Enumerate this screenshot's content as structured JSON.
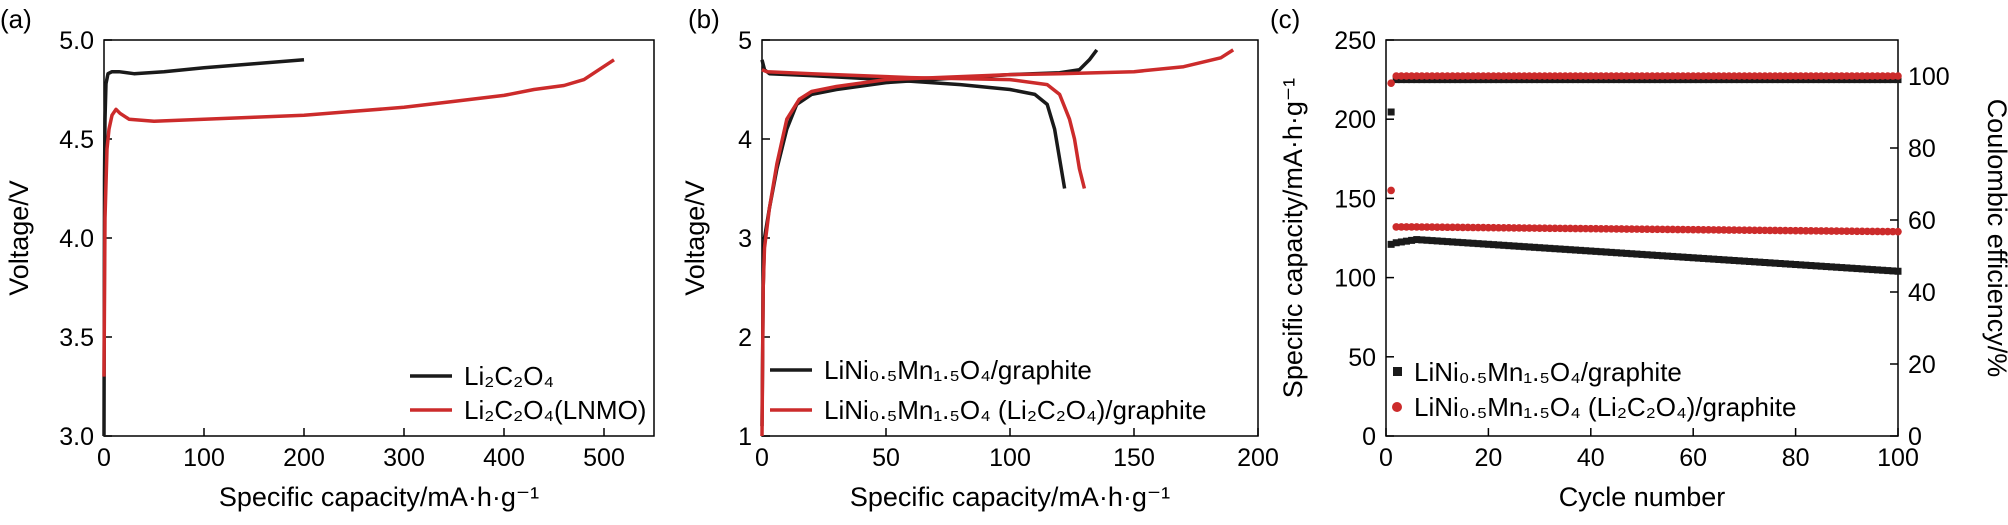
{
  "colors": {
    "black_series": "#1a1a1a",
    "red_series": "#cc2b2b"
  },
  "chart_data": [
    {
      "type": "line",
      "panel_label": "(a)",
      "xlabel": "Specific capacity/mA·h·g⁻¹",
      "ylabel": "Voltage/V",
      "xlim": [
        0,
        550
      ],
      "ylim": [
        3.0,
        5.0
      ],
      "xticks": [
        "0",
        "100",
        "200",
        "300",
        "400",
        "500"
      ],
      "yticks": [
        "3.0",
        "3.5",
        "4.0",
        "4.5",
        "5.0"
      ],
      "legend_position": "bottom-right",
      "series": [
        {
          "name": "Li₂C₂O₄",
          "color": "#1a1a1a",
          "points": [
            [
              0,
              3.0
            ],
            [
              0.5,
              4.3
            ],
            [
              1,
              4.6
            ],
            [
              2,
              4.78
            ],
            [
              4,
              4.83
            ],
            [
              8,
              4.84
            ],
            [
              15,
              4.84
            ],
            [
              30,
              4.83
            ],
            [
              60,
              4.84
            ],
            [
              100,
              4.86
            ],
            [
              150,
              4.88
            ],
            [
              200,
              4.9
            ]
          ]
        },
        {
          "name": "Li₂C₂O₄(LNMO)",
          "color": "#cc2b2b",
          "points": [
            [
              0,
              3.3
            ],
            [
              1,
              4.1
            ],
            [
              3,
              4.45
            ],
            [
              5,
              4.55
            ],
            [
              8,
              4.62
            ],
            [
              12,
              4.65
            ],
            [
              16,
              4.63
            ],
            [
              25,
              4.6
            ],
            [
              50,
              4.59
            ],
            [
              100,
              4.6
            ],
            [
              150,
              4.61
            ],
            [
              200,
              4.62
            ],
            [
              250,
              4.64
            ],
            [
              300,
              4.66
            ],
            [
              350,
              4.69
            ],
            [
              400,
              4.72
            ],
            [
              430,
              4.75
            ],
            [
              460,
              4.77
            ],
            [
              480,
              4.8
            ],
            [
              495,
              4.85
            ],
            [
              510,
              4.9
            ]
          ]
        }
      ]
    },
    {
      "type": "line",
      "panel_label": "(b)",
      "xlabel": "Specific capacity/mA·h·g⁻¹",
      "ylabel": "Voltage/V",
      "xlim": [
        0,
        200
      ],
      "ylim": [
        1,
        5
      ],
      "xticks": [
        "0",
        "50",
        "100",
        "150",
        "200"
      ],
      "yticks": [
        "1",
        "2",
        "3",
        "4",
        "5"
      ],
      "legend_position": "bottom",
      "series": [
        {
          "name": "LiNi₀.₅Mn₁.₅O₄/graphite",
          "color": "#1a1a1a",
          "segments": [
            [
              [
                0,
                1.1
              ],
              [
                0.5,
                2.5
              ],
              [
                1,
                3.0
              ],
              [
                3,
                3.3
              ],
              [
                6,
                3.7
              ],
              [
                10,
                4.1
              ],
              [
                14,
                4.35
              ],
              [
                20,
                4.45
              ],
              [
                30,
                4.5
              ],
              [
                50,
                4.57
              ],
              [
                80,
                4.62
              ],
              [
                100,
                4.65
              ],
              [
                120,
                4.67
              ],
              [
                128,
                4.7
              ],
              [
                132,
                4.8
              ],
              [
                135,
                4.9
              ]
            ],
            [
              [
                0,
                4.8
              ],
              [
                1,
                4.7
              ],
              [
                3,
                4.66
              ],
              [
                20,
                4.64
              ],
              [
                50,
                4.6
              ],
              [
                80,
                4.55
              ],
              [
                100,
                4.5
              ],
              [
                110,
                4.45
              ],
              [
                115,
                4.35
              ],
              [
                118,
                4.1
              ],
              [
                120,
                3.8
              ],
              [
                122,
                3.5
              ]
            ]
          ]
        },
        {
          "name": "LiNi₀.₅Mn₁.₅O₄ (Li₂C₂O₄)/graphite",
          "color": "#cc2b2b",
          "segments": [
            [
              [
                0,
                1.0
              ],
              [
                0.5,
                2.5
              ],
              [
                1,
                2.9
              ],
              [
                3,
                3.3
              ],
              [
                6,
                3.75
              ],
              [
                10,
                4.2
              ],
              [
                15,
                4.4
              ],
              [
                20,
                4.48
              ],
              [
                30,
                4.53
              ],
              [
                50,
                4.6
              ],
              [
                80,
                4.63
              ],
              [
                100,
                4.65
              ],
              [
                120,
                4.66
              ],
              [
                150,
                4.68
              ],
              [
                170,
                4.73
              ],
              [
                185,
                4.82
              ],
              [
                190,
                4.9
              ]
            ],
            [
              [
                0,
                4.7
              ],
              [
                2,
                4.68
              ],
              [
                20,
                4.66
              ],
              [
                60,
                4.62
              ],
              [
                100,
                4.6
              ],
              [
                115,
                4.55
              ],
              [
                120,
                4.45
              ],
              [
                124,
                4.2
              ],
              [
                126,
                4.0
              ],
              [
                128,
                3.7
              ],
              [
                130,
                3.5
              ]
            ]
          ]
        }
      ]
    },
    {
      "type": "scatter",
      "panel_label": "(c)",
      "xlabel": "Cycle number",
      "ylabel": "Specific capacity/mA·h·g⁻¹",
      "y2label": "Coulombic efficiency/%",
      "xlim": [
        0,
        100
      ],
      "ylim": [
        0,
        250
      ],
      "y2lim": [
        0,
        110
      ],
      "xticks": [
        "0",
        "20",
        "40",
        "60",
        "80",
        "100"
      ],
      "yticks": [
        "0",
        "50",
        "100",
        "150",
        "200",
        "250"
      ],
      "y2ticks": [
        "0",
        "20",
        "40",
        "60",
        "80",
        "100"
      ],
      "legend_position": "bottom-left",
      "series": [
        {
          "name": "LiNi₀.₅Mn₁.₅O₄/graphite",
          "color": "#1a1a1a",
          "marker": "square",
          "capacity": {
            "first": 121,
            "start": 122,
            "peak": 124,
            "peak_cycle": 6,
            "end": 104
          },
          "efficiency": {
            "first": 90,
            "rest": 99
          }
        },
        {
          "name": "LiNi₀.₅Mn₁.₅O₄ (Li₂C₂O₄)/graphite",
          "color": "#cc2b2b",
          "marker": "circle",
          "capacity": {
            "first": 155,
            "start": 132,
            "peak": 132,
            "peak_cycle": 5,
            "end": 129
          },
          "efficiency": {
            "first": 98,
            "rest": 100
          }
        }
      ]
    }
  ]
}
